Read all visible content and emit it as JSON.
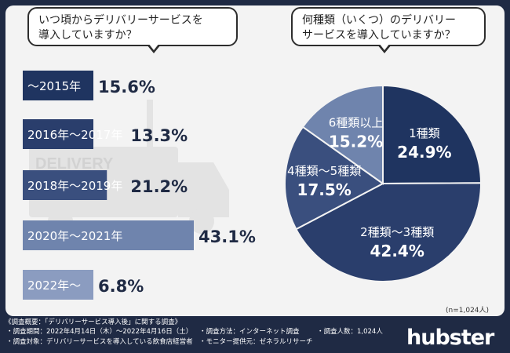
{
  "left_question": [
    "いつ頃からデリバリーサービスを",
    "導入していますか？"
  ],
  "right_question": [
    "何種類（いくつ）のデリバリー",
    "サービスを導入していますか？"
  ],
  "background_label": "DELIVERY",
  "sample_note": "(n=1,024人)",
  "footer": {
    "title": "《調査概要：「デリバリーサービス導入後」に関する調査》",
    "period": "・調査期間：2022年4月14日（木）〜2022年4月16日（土）",
    "method": "・調査方法：インターネット調査",
    "count": "・調査人数：1,024人",
    "target": "・調査対象：デリバリーサービスを導入している飲食店経営者",
    "panel": "・モニター提供元：ゼネラルリサーチ"
  },
  "brand": "hubster",
  "colors": {
    "dark": "#1f3460",
    "mid": "#3a4f7e",
    "light": "#6f84ad",
    "lighter": "#8b9cc0",
    "page": "#1f2a44"
  },
  "chart_data": [
    {
      "type": "bar",
      "orientation": "horizontal",
      "categories": [
        "〜2015年",
        "2016年〜2017年",
        "2018年〜2019年",
        "2020年〜2021年",
        "2022年〜"
      ],
      "values": [
        15.6,
        13.3,
        21.2,
        43.1,
        6.8
      ],
      "value_labels": [
        "15.6%",
        "13.3%",
        "21.2%",
        "43.1%",
        "6.8%"
      ],
      "colors": [
        "#1f3460",
        "#2a3e6c",
        "#3a4f7e",
        "#6f84ad",
        "#8b9cc0"
      ]
    },
    {
      "type": "pie",
      "categories": [
        "1種類",
        "2種類〜3種類",
        "4種類〜5種類",
        "6種類以上"
      ],
      "values": [
        24.9,
        42.4,
        17.5,
        15.2
      ],
      "value_labels": [
        "24.9%",
        "42.4%",
        "17.5%",
        "15.2%"
      ],
      "colors": [
        "#1f3460",
        "#2a3e6c",
        "#3a4f7e",
        "#6f84ad"
      ]
    }
  ]
}
